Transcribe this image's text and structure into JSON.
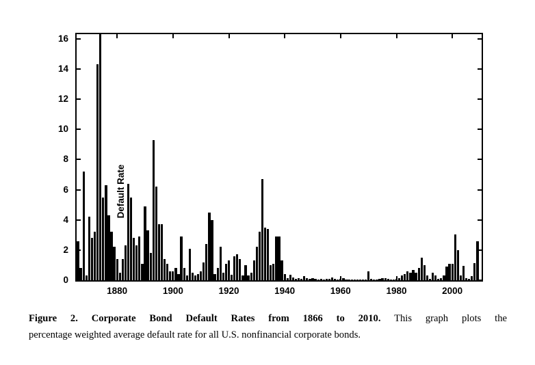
{
  "figure": {
    "caption_bold": "Figure 2. Corporate Bond Default Rates from 1866 to 2010.",
    "caption_line1_rest": "This graph plots the",
    "caption_line2": "percentage weighted average default rate for all U.S. nonfinancial corporate bonds."
  },
  "chart_data": {
    "type": "bar",
    "title": "",
    "xlabel": "",
    "ylabel": "Default Rate",
    "bar_color": "#000000",
    "grid": false,
    "legend": false,
    "x_start": 1866,
    "x_end": 2010,
    "ylim": [
      0,
      16.3
    ],
    "x_ticks": [
      1880,
      1900,
      1920,
      1940,
      1960,
      1980,
      2000
    ],
    "y_ticks": [
      0,
      2,
      4,
      6,
      8,
      10,
      12,
      14,
      16
    ],
    "values": [
      2.6,
      0.8,
      7.2,
      0.3,
      4.2,
      2.8,
      3.2,
      14.3,
      16.35,
      5.5,
      6.3,
      4.3,
      3.2,
      2.2,
      1.4,
      0.5,
      1.4,
      2.3,
      6.4,
      5.5,
      2.8,
      2.3,
      2.9,
      1.1,
      4.9,
      3.3,
      1.8,
      9.3,
      6.2,
      3.7,
      3.7,
      1.4,
      1.1,
      0.6,
      0.6,
      0.8,
      0.4,
      2.9,
      0.8,
      0.3,
      2.1,
      0.5,
      0.3,
      0.4,
      0.6,
      1.2,
      2.4,
      4.5,
      4.0,
      0.4,
      0.8,
      2.2,
      0.5,
      1.1,
      1.3,
      0.35,
      1.6,
      1.7,
      1.4,
      0.3,
      1.0,
      0.3,
      0.5,
      1.3,
      2.2,
      3.2,
      6.7,
      3.5,
      3.4,
      1.0,
      1.1,
      2.9,
      2.9,
      1.3,
      0.4,
      0.15,
      0.35,
      0.2,
      0.1,
      0.15,
      0.1,
      0.25,
      0.15,
      0.1,
      0.15,
      0.1,
      0.05,
      0.1,
      0.05,
      0.08,
      0.1,
      0.2,
      0.1,
      0.05,
      0.1,
      0.15,
      0.05,
      0.06,
      0.03,
      0.03,
      0.03,
      0.05,
      0.03,
      0.05,
      0.6,
      0.1,
      0.05,
      0.05,
      0.1,
      0.12,
      0.15,
      0.1,
      0.05,
      0.06,
      0.1,
      0.15,
      0.3,
      0.4,
      0.6,
      0.5,
      0.7,
      0.5,
      0.8,
      1.5,
      1.0,
      0.3,
      0.1,
      0.5,
      0.3,
      0.1,
      0.15,
      0.3,
      0.9,
      1.1,
      1.1,
      3.05,
      2.0,
      0.3,
      0.95,
      0.15,
      0.1,
      0.25,
      1.15,
      2.6,
      0.05
    ]
  }
}
